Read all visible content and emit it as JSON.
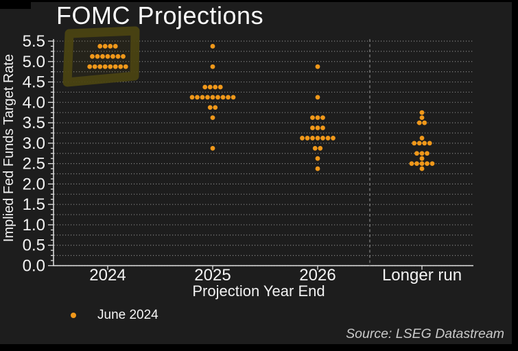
{
  "page": {
    "background_color": "#1d1d1d",
    "frame_color": "#000000"
  },
  "chart_data": {
    "type": "scatter",
    "subtype": "fomc-dot-plot",
    "title": "FOMC Projections",
    "xlabel": "Projection Year End",
    "ylabel": "Implied Fed Funds Target Rate",
    "ylim": [
      0.0,
      5.5
    ],
    "ytick_step": 0.5,
    "grid_step": 0.25,
    "minor_tick_step": 0.125,
    "grid": "horizontal dotted gray on dark background",
    "ytick_labels": [
      "5.5",
      "5.0",
      "4.5",
      "4.0",
      "3.5",
      "3.0",
      "2.5",
      "2.0",
      "1.5",
      "1.0",
      "0.5",
      "0.0"
    ],
    "categories": [
      "2024",
      "2025",
      "2026",
      "Longer run"
    ],
    "separator_between": [
      "2026",
      "Longer run"
    ],
    "legend": {
      "position": "bottom-left",
      "entries": [
        {
          "label": "June 2024",
          "color": "#f0981a"
        }
      ]
    },
    "source": "Source: LSEG Datastream",
    "dot_color": "#f0981a",
    "series": [
      {
        "name": "June 2024",
        "color": "#f0981a",
        "dot_counts": [
          {
            "category": "2024",
            "rate": 5.375,
            "count": 4
          },
          {
            "category": "2024",
            "rate": 5.125,
            "count": 7
          },
          {
            "category": "2024",
            "rate": 4.875,
            "count": 8
          },
          {
            "category": "2025",
            "rate": 5.375,
            "count": 1
          },
          {
            "category": "2025",
            "rate": 4.875,
            "count": 1
          },
          {
            "category": "2025",
            "rate": 4.375,
            "count": 4
          },
          {
            "category": "2025",
            "rate": 4.125,
            "count": 9
          },
          {
            "category": "2025",
            "rate": 3.875,
            "count": 2
          },
          {
            "category": "2025",
            "rate": 3.625,
            "count": 1
          },
          {
            "category": "2025",
            "rate": 2.875,
            "count": 1
          },
          {
            "category": "2026",
            "rate": 4.875,
            "count": 1
          },
          {
            "category": "2026",
            "rate": 4.125,
            "count": 1
          },
          {
            "category": "2026",
            "rate": 3.625,
            "count": 3
          },
          {
            "category": "2026",
            "rate": 3.375,
            "count": 3
          },
          {
            "category": "2026",
            "rate": 3.125,
            "count": 7
          },
          {
            "category": "2026",
            "rate": 2.875,
            "count": 2
          },
          {
            "category": "2026",
            "rate": 2.625,
            "count": 1
          },
          {
            "category": "2026",
            "rate": 2.375,
            "count": 1
          },
          {
            "category": "Longer run",
            "rate": 3.75,
            "count": 1
          },
          {
            "category": "Longer run",
            "rate": 3.625,
            "count": 1
          },
          {
            "category": "Longer run",
            "rate": 3.5,
            "count": 2
          },
          {
            "category": "Longer run",
            "rate": 3.125,
            "count": 1
          },
          {
            "category": "Longer run",
            "rate": 3.0,
            "count": 4
          },
          {
            "category": "Longer run",
            "rate": 2.75,
            "count": 3
          },
          {
            "category": "Longer run",
            "rate": 2.625,
            "count": 1
          },
          {
            "category": "Longer run",
            "rate": 2.5,
            "count": 5
          },
          {
            "category": "Longer run",
            "rate": 2.375,
            "count": 1
          }
        ]
      }
    ],
    "annotations": [
      {
        "type": "hand-drawn-highlight-box",
        "target": "2024 dot cluster",
        "color": "#4b4411"
      }
    ]
  }
}
